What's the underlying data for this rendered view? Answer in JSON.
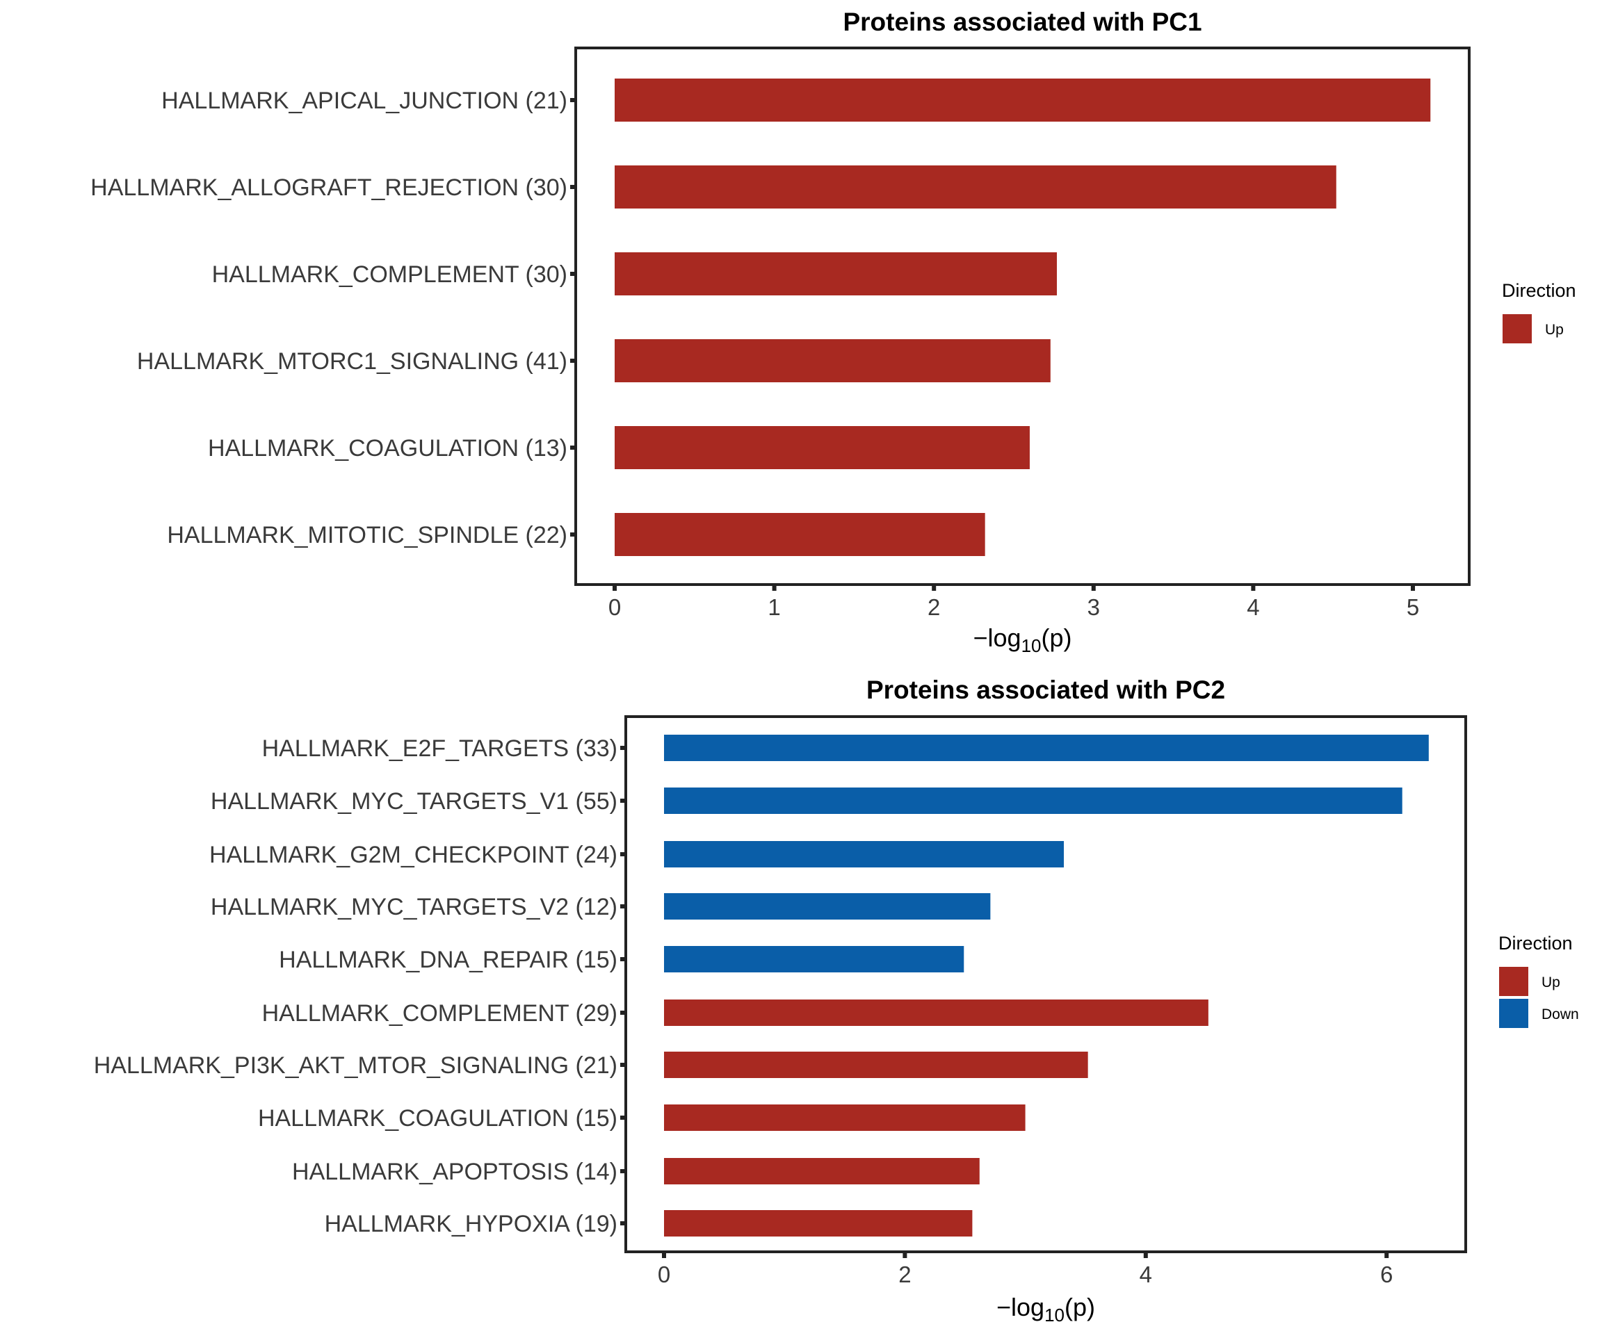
{
  "chart_data": [
    {
      "type": "bar",
      "orientation": "horizontal",
      "title": "Proteins associated with PC1",
      "xlabel_prefix": "−log",
      "xlabel_sub": "10",
      "xlabel_suffix": "(p)",
      "xlim": [
        0,
        5.3
      ],
      "xticks": [
        0,
        1,
        2,
        3,
        4,
        5
      ],
      "categories": [
        "HALLMARK_APICAL_JUNCTION (21)",
        "HALLMARK_ALLOGRAFT_REJECTION (30)",
        "HALLMARK_COMPLEMENT (30)",
        "HALLMARK_MTORC1_SIGNALING (41)",
        "HALLMARK_COAGULATION (13)",
        "HALLMARK_MITOTIC_SPINDLE (22)"
      ],
      "values": [
        5.11,
        4.52,
        2.77,
        2.73,
        2.6,
        2.32
      ],
      "direction": [
        "Up",
        "Up",
        "Up",
        "Up",
        "Up",
        "Up"
      ],
      "legend": {
        "title": "Direction",
        "entries": [
          {
            "label": "Up",
            "color": "#a82921"
          }
        ],
        "position": "right"
      }
    },
    {
      "type": "bar",
      "orientation": "horizontal",
      "title": "Proteins associated with PC2",
      "xlabel_prefix": "−log",
      "xlabel_sub": "10",
      "xlabel_suffix": "(p)",
      "xlim": [
        0,
        6.6
      ],
      "xticks": [
        0,
        2,
        4,
        6
      ],
      "categories": [
        "HALLMARK_E2F_TARGETS (33)",
        "HALLMARK_MYC_TARGETS_V1 (55)",
        "HALLMARK_G2M_CHECKPOINT (24)",
        "HALLMARK_MYC_TARGETS_V2 (12)",
        "HALLMARK_DNA_REPAIR (15)",
        "HALLMARK_COMPLEMENT (29)",
        "HALLMARK_PI3K_AKT_MTOR_SIGNALING (21)",
        "HALLMARK_COAGULATION (15)",
        "HALLMARK_APOPTOSIS (14)",
        "HALLMARK_HYPOXIA (19)"
      ],
      "values": [
        6.35,
        6.13,
        3.32,
        2.71,
        2.49,
        4.52,
        3.52,
        3.0,
        2.62,
        2.56
      ],
      "direction": [
        "Down",
        "Down",
        "Down",
        "Down",
        "Down",
        "Up",
        "Up",
        "Up",
        "Up",
        "Up"
      ],
      "legend": {
        "title": "Direction",
        "entries": [
          {
            "label": "Up",
            "color": "#a82921"
          },
          {
            "label": "Down",
            "color": "#0a5ea8"
          }
        ],
        "position": "right"
      }
    }
  ]
}
